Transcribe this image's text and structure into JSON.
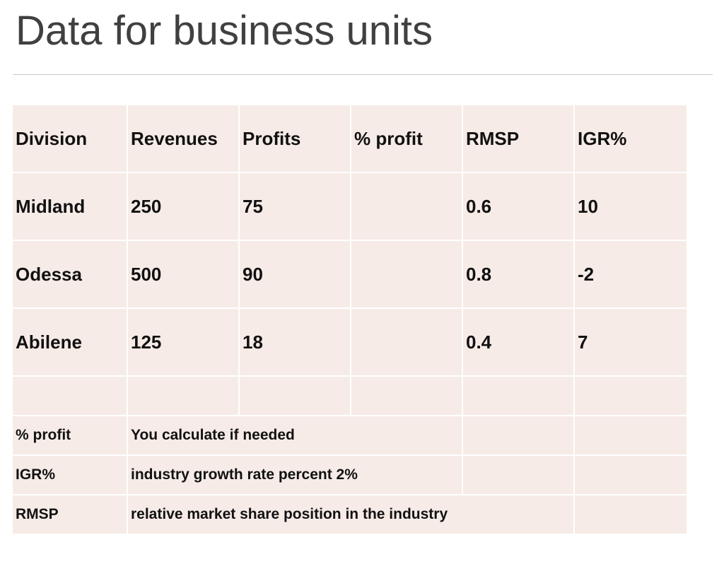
{
  "title": "Data for business units",
  "table": {
    "headers": [
      "Division",
      "Revenues",
      "Profits",
      "% profit",
      "RMSP",
      "IGR%"
    ],
    "rows": [
      [
        "Midland",
        "250",
        "75",
        "",
        "0.6",
        "10"
      ],
      [
        "Odessa",
        "500",
        "90",
        "",
        "0.8",
        "-2"
      ],
      [
        "Abilene",
        "125",
        "18",
        "",
        "0.4",
        "7"
      ]
    ],
    "notes": [
      {
        "term": "% profit",
        "definition": "You calculate if needed"
      },
      {
        "term": "IGR%",
        "definition": "industry growth rate percent 2%"
      },
      {
        "term": "RMSP",
        "definition": "relative market share position in the industry"
      }
    ]
  },
  "colors": {
    "cell_fill": "#f6ebe7",
    "title": "#404040"
  }
}
